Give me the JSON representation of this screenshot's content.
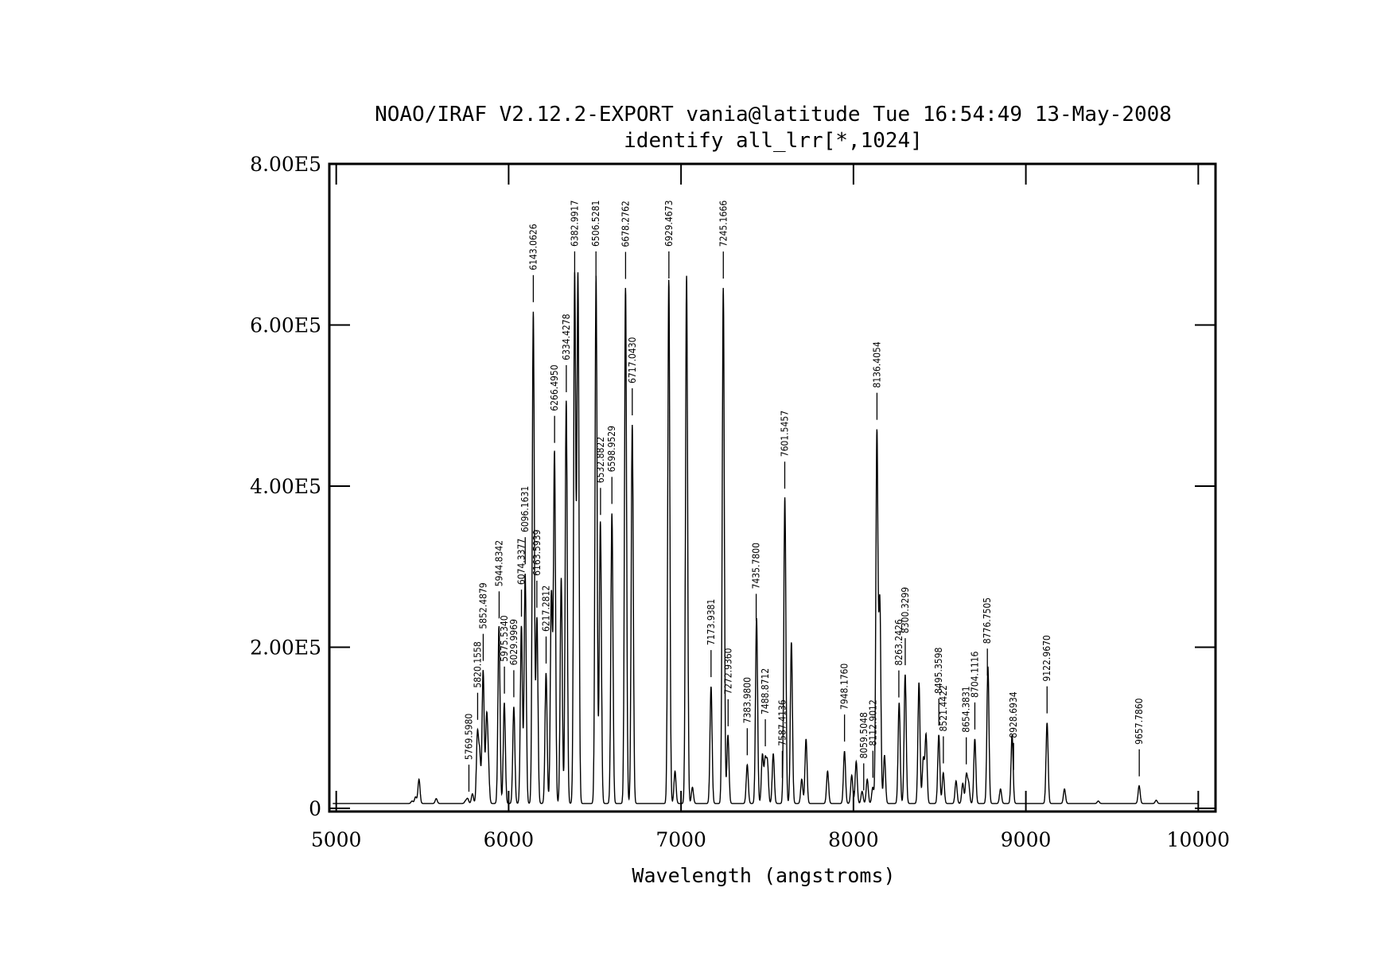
{
  "chart_data": {
    "type": "line",
    "title": "NOAO/IRAF V2.12.2-EXPORT vania@latitude Tue 16:54:49 13-May-2008",
    "subtitle": "identify all_lrr[*,1024]",
    "xlabel": "Wavelength (angstroms)",
    "ylabel": "",
    "xlim": [
      4960,
      10100
    ],
    "ylim": [
      -4000,
      800000
    ],
    "x_ticks": [
      5000,
      6000,
      7000,
      8000,
      9000,
      10000
    ],
    "x_tick_labels": [
      "5000",
      "6000",
      "7000",
      "8000",
      "9000",
      "10000"
    ],
    "y_ticks": [
      0,
      200000,
      400000,
      600000,
      800000
    ],
    "y_tick_labels": [
      "0",
      "2.00E5",
      "4.00E5",
      "6.00E5",
      "8.00E5"
    ],
    "grid": false,
    "baseline": 6000,
    "peak_sigma": 6,
    "peaks": [
      [
        5440,
        3000
      ],
      [
        5460,
        8000
      ],
      [
        5480,
        30000
      ],
      [
        5580,
        6000
      ],
      [
        5750,
        3000
      ],
      [
        5762,
        6000
      ],
      [
        5790,
        12000
      ],
      [
        5819,
        85000
      ],
      [
        5832,
        60000
      ],
      [
        5852,
        165000
      ],
      [
        5872,
        100000
      ],
      [
        5882,
        45000
      ],
      [
        5944,
        220000
      ],
      [
        5975,
        125000
      ],
      [
        6030,
        120000
      ],
      [
        6074,
        220000
      ],
      [
        6096,
        285000
      ],
      [
        6143,
        610000
      ],
      [
        6164,
        230000
      ],
      [
        6217,
        162000
      ],
      [
        6248,
        260000
      ],
      [
        6266,
        435000
      ],
      [
        6305,
        280000
      ],
      [
        6334,
        500000
      ],
      [
        6383,
        655000
      ],
      [
        6402,
        655000
      ],
      [
        6507,
        655000
      ],
      [
        6532,
        350000
      ],
      [
        6599,
        360000
      ],
      [
        6678,
        640000
      ],
      [
        6717,
        470000
      ],
      [
        6929,
        650000
      ],
      [
        6965,
        40000
      ],
      [
        7032,
        655000
      ],
      [
        7066,
        20000
      ],
      [
        7174,
        145000
      ],
      [
        7245,
        640000
      ],
      [
        7272,
        85000
      ],
      [
        7384,
        48000
      ],
      [
        7438,
        230000
      ],
      [
        7472,
        60000
      ],
      [
        7488,
        52000
      ],
      [
        7501,
        50000
      ],
      [
        7535,
        62000
      ],
      [
        7602,
        380000
      ],
      [
        7640,
        200000
      ],
      [
        7700,
        30000
      ],
      [
        7725,
        80000
      ],
      [
        7850,
        40000
      ],
      [
        7948,
        65000
      ],
      [
        7990,
        35000
      ],
      [
        8016,
        52000
      ],
      [
        8050,
        15000
      ],
      [
        8080,
        30000
      ],
      [
        8112,
        20000
      ],
      [
        8136,
        460000
      ],
      [
        8153,
        250000
      ],
      [
        8180,
        60000
      ],
      [
        8265,
        125000
      ],
      [
        8300,
        160000
      ],
      [
        8380,
        150000
      ],
      [
        8405,
        55000
      ],
      [
        8421,
        85000
      ],
      [
        8495,
        85000
      ],
      [
        8521,
        38000
      ],
      [
        8595,
        28000
      ],
      [
        8634,
        25000
      ],
      [
        8655,
        35000
      ],
      [
        8668,
        24000
      ],
      [
        8704,
        80000
      ],
      [
        8780,
        170000
      ],
      [
        8853,
        18000
      ],
      [
        8920,
        85000
      ],
      [
        9123,
        100000
      ],
      [
        9224,
        18000
      ],
      [
        9420,
        3000
      ],
      [
        9657,
        22000
      ],
      [
        9756,
        4000
      ]
    ],
    "identified_lines": [
      {
        "wavelength": 5769.598,
        "label": "5769.5980"
      },
      {
        "wavelength": 5820.156,
        "label": "5820.1558"
      },
      {
        "wavelength": 5852.4879,
        "label": "5852.4879"
      },
      {
        "wavelength": 5944.8342,
        "label": "5944.8342"
      },
      {
        "wavelength": 5975.534,
        "label": "5975.5340"
      },
      {
        "wavelength": 6029.9969,
        "label": "6029.9969"
      },
      {
        "wavelength": 6074.3377,
        "label": "6074.3377"
      },
      {
        "wavelength": 6096.1631,
        "label": "6096.1631"
      },
      {
        "wavelength": 6143.0626,
        "label": "6143.0626"
      },
      {
        "wavelength": 6163.5939,
        "label": "6163.5939"
      },
      {
        "wavelength": 6217.2812,
        "label": "6217.2812"
      },
      {
        "wavelength": 6266.495,
        "label": "6266.4950"
      },
      {
        "wavelength": 6334.4278,
        "label": "6334.4278"
      },
      {
        "wavelength": 6382.9917,
        "label": "6382.9917"
      },
      {
        "wavelength": 6506.5281,
        "label": "6506.5281"
      },
      {
        "wavelength": 6532.8822,
        "label": "6532.8822"
      },
      {
        "wavelength": 6598.9529,
        "label": "6598.9529"
      },
      {
        "wavelength": 6678.2762,
        "label": "6678.2762"
      },
      {
        "wavelength": 6717.043,
        "label": "6717.0430"
      },
      {
        "wavelength": 6929.4673,
        "label": "6929.4673"
      },
      {
        "wavelength": 7173.9381,
        "label": "7173.9381"
      },
      {
        "wavelength": 7245.1666,
        "label": "7245.1666"
      },
      {
        "wavelength": 7272.936,
        "label": "7272.9360"
      },
      {
        "wavelength": 7383.98,
        "label": "7383.9800"
      },
      {
        "wavelength": 7435.78,
        "label": "7435.7800"
      },
      {
        "wavelength": 7488.8712,
        "label": "7488.8712"
      },
      {
        "wavelength": 7587.4136,
        "label": "7587.4136"
      },
      {
        "wavelength": 7601.5457,
        "label": "7601.5457"
      },
      {
        "wavelength": 7948.176,
        "label": "7948.1760"
      },
      {
        "wavelength": 8059.5048,
        "label": "8059.5048"
      },
      {
        "wavelength": 8112.9012,
        "label": "8112.9012"
      },
      {
        "wavelength": 8136.4054,
        "label": "8136.4054"
      },
      {
        "wavelength": 8263.2426,
        "label": "8263.2426"
      },
      {
        "wavelength": 8300.3299,
        "label": "8300.3299"
      },
      {
        "wavelength": 8495.3598,
        "label": "8495.3598"
      },
      {
        "wavelength": 8521.4422,
        "label": "8521.4422"
      },
      {
        "wavelength": 8654.3831,
        "label": "8654.3831"
      },
      {
        "wavelength": 8704.1116,
        "label": "8704.1116"
      },
      {
        "wavelength": 8776.7505,
        "label": "8776.7505"
      },
      {
        "wavelength": 8928.6934,
        "label": "8928.6934"
      },
      {
        "wavelength": 9122.967,
        "label": "9122.9670"
      },
      {
        "wavelength": 9657.786,
        "label": "9657.7860"
      }
    ]
  }
}
